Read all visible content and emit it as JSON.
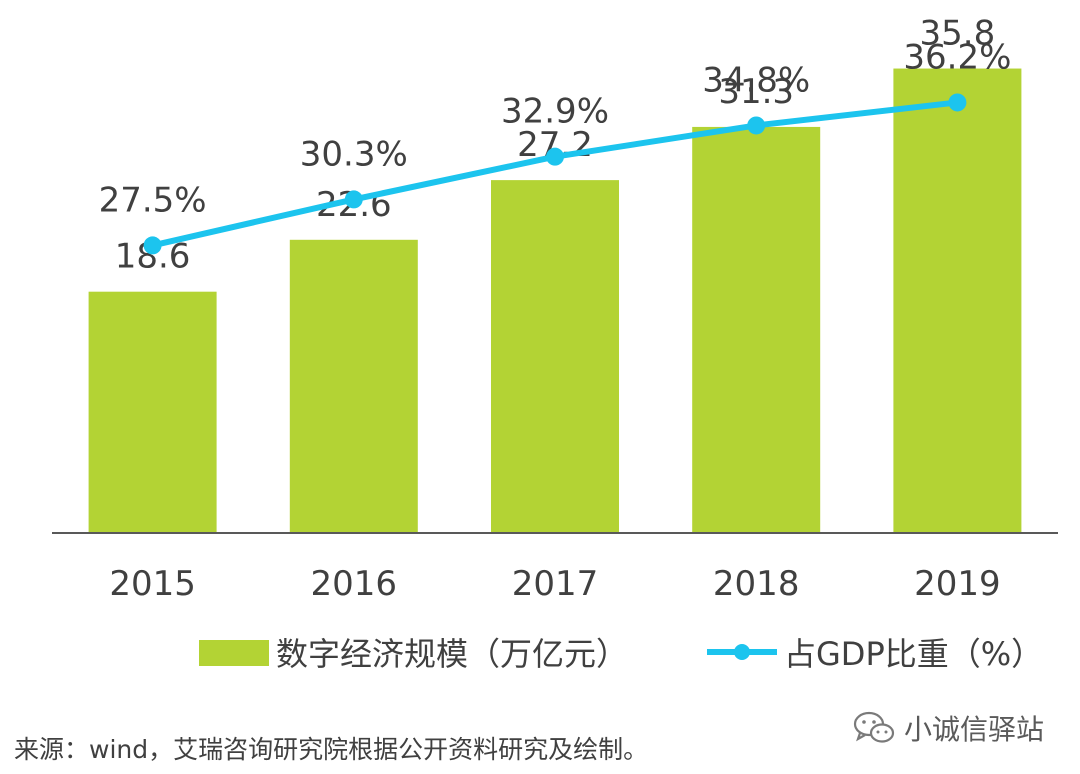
{
  "chart_data": {
    "type": "bar+line",
    "categories": [
      "2015",
      "2016",
      "2017",
      "2018",
      "2019"
    ],
    "series": [
      {
        "name": "数字经济规模（万亿元）",
        "type": "bar",
        "values": [
          18.6,
          22.6,
          27.2,
          31.3,
          35.8
        ],
        "labels": [
          "18.6",
          "22.6",
          "27.2",
          "31.3",
          "35.8"
        ],
        "color": "#b3d334"
      },
      {
        "name": "占GDP比重（%）",
        "type": "line",
        "values": [
          27.5,
          30.3,
          32.9,
          34.8,
          36.2
        ],
        "labels": [
          "27.5%",
          "30.3%",
          "32.9%",
          "34.8%",
          "36.2%"
        ],
        "color": "#1cc4ee"
      }
    ],
    "bar_ylim": [
      0,
      38
    ],
    "line_ylim": [
      10,
      40
    ],
    "legend": [
      {
        "label": "数字经济规模（万亿元）",
        "marker": "bar"
      },
      {
        "label": "占GDP比重（%）",
        "marker": "line"
      }
    ],
    "legend_position": "bottom"
  },
  "source": "来源：wind，艾瑞咨询研究院根据公开资料研究及绘制。",
  "watermark": {
    "icon": "wechat-icon",
    "text": "小诚信驿站"
  }
}
